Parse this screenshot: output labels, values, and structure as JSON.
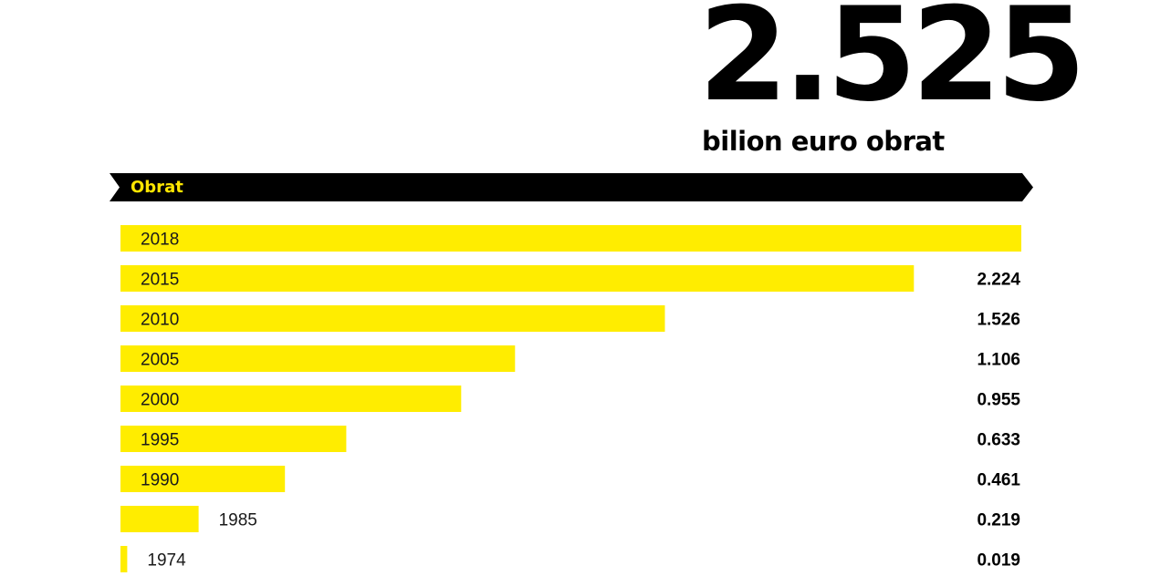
{
  "headline": {
    "value": "2.525",
    "caption": "bilion euro obrat"
  },
  "banner": {
    "label": "Obrat"
  },
  "colors": {
    "bar": "#ffed00",
    "banner": "#000000",
    "banner_text": "#ffe600"
  },
  "chart_data": {
    "type": "bar",
    "orientation": "horizontal",
    "categories": [
      "2018",
      "2015",
      "2010",
      "2005",
      "2000",
      "1995",
      "1990",
      "1985",
      "1974"
    ],
    "values": [
      2.525,
      2.224,
      1.526,
      1.106,
      0.955,
      0.633,
      0.461,
      0.219,
      0.019
    ],
    "value_labels": [
      "",
      "2.224",
      "1.526",
      "1.106",
      "0.955",
      "0.633",
      "0.461",
      "0.219",
      "0.019"
    ],
    "title": "Obrat",
    "xlabel": "",
    "ylabel": "",
    "grid": false,
    "legend": "none"
  }
}
